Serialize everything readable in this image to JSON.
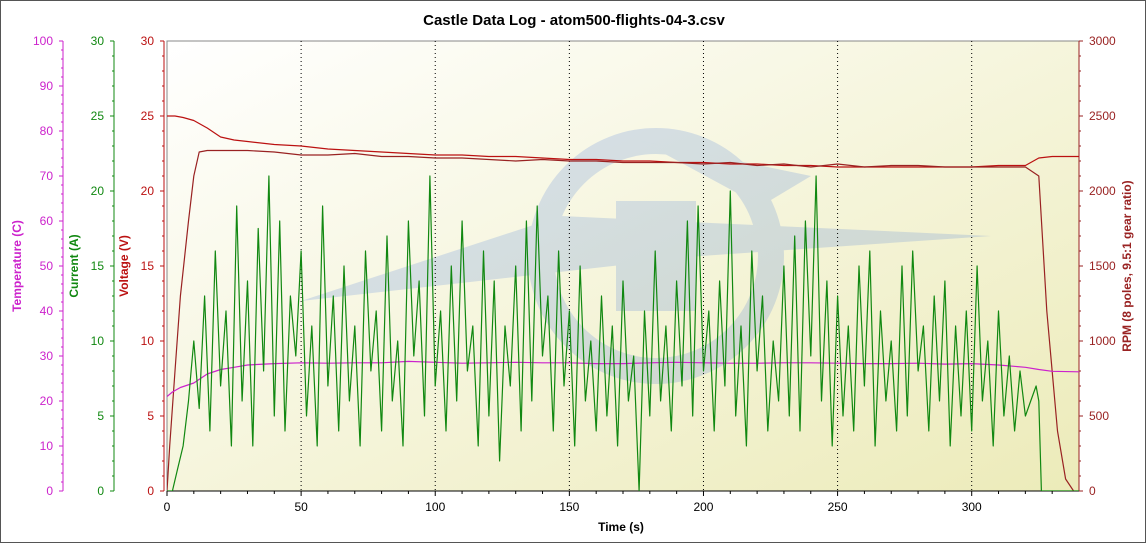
{
  "chart_data": {
    "type": "line",
    "title": "Castle Data Log - atom500-flights-04-3.csv",
    "xlabel": "Time (s)",
    "xlim": [
      0,
      340
    ],
    "x_ticks": [
      "0",
      "50",
      "100",
      "150",
      "200",
      "250",
      "300"
    ],
    "axes": [
      {
        "name": "temperature",
        "label": "Temperature (C)",
        "color": "#cc22cc",
        "lim": [
          0,
          100
        ],
        "ticks": [
          "0",
          "10",
          "20",
          "30",
          "40",
          "50",
          "60",
          "70",
          "80",
          "90",
          "100"
        ]
      },
      {
        "name": "current",
        "label": "Current (A)",
        "color": "#118811",
        "lim": [
          0,
          30
        ],
        "ticks": [
          "0",
          "5",
          "10",
          "15",
          "20",
          "25",
          "30"
        ]
      },
      {
        "name": "voltage",
        "label": "Voltage (V)",
        "color": "#bb1111",
        "lim": [
          0,
          30
        ],
        "ticks": [
          "0",
          "5",
          "10",
          "15",
          "20",
          "25",
          "30"
        ]
      },
      {
        "name": "rpm",
        "label": "RPM (8 poles, 9.5:1 gear ratio)",
        "color": "#992222",
        "lim": [
          0,
          3000
        ],
        "ticks": [
          "0",
          "500",
          "1000",
          "1500",
          "2000",
          "2500",
          "3000"
        ]
      }
    ],
    "series": [
      {
        "axis": "voltage",
        "color": "#bb1111",
        "x": [
          0,
          0.5,
          3,
          6,
          10,
          15,
          20,
          25,
          30,
          40,
          50,
          60,
          70,
          80,
          90,
          100,
          110,
          120,
          130,
          140,
          150,
          160,
          170,
          180,
          190,
          200,
          210,
          220,
          230,
          240,
          250,
          260,
          270,
          280,
          290,
          300,
          310,
          320,
          325,
          330,
          335,
          340
        ],
        "values": [
          25.0,
          25.0,
          25.0,
          24.9,
          24.7,
          24.2,
          23.6,
          23.4,
          23.3,
          23.1,
          23.0,
          22.8,
          22.7,
          22.6,
          22.5,
          22.4,
          22.4,
          22.3,
          22.3,
          22.2,
          22.1,
          22.1,
          22.0,
          22.0,
          21.9,
          21.9,
          21.8,
          21.8,
          21.7,
          21.7,
          21.6,
          21.6,
          21.6,
          21.6,
          21.6,
          21.6,
          21.7,
          21.7,
          22.2,
          22.3,
          22.3,
          22.3
        ]
      },
      {
        "axis": "rpm",
        "color": "#992222",
        "x": [
          0,
          1,
          3,
          5,
          8,
          10,
          12,
          15,
          20,
          30,
          40,
          50,
          60,
          70,
          80,
          90,
          100,
          110,
          120,
          130,
          140,
          150,
          160,
          170,
          180,
          190,
          200,
          210,
          220,
          230,
          240,
          250,
          260,
          270,
          280,
          290,
          300,
          310,
          320,
          325,
          328,
          332,
          335,
          338
        ],
        "values": [
          0,
          300,
          800,
          1300,
          1800,
          2100,
          2260,
          2270,
          2270,
          2270,
          2260,
          2240,
          2240,
          2250,
          2230,
          2230,
          2220,
          2220,
          2210,
          2200,
          2210,
          2200,
          2200,
          2190,
          2190,
          2190,
          2180,
          2190,
          2170,
          2180,
          2160,
          2180,
          2160,
          2170,
          2170,
          2160,
          2160,
          2160,
          2160,
          2100,
          1200,
          400,
          80,
          0
        ]
      },
      {
        "axis": "temperature",
        "color": "#cc22cc",
        "x": [
          0,
          2,
          5,
          10,
          15,
          20,
          25,
          30,
          40,
          50,
          60,
          70,
          80,
          90,
          100,
          110,
          120,
          130,
          140,
          150,
          160,
          170,
          180,
          190,
          200,
          210,
          220,
          230,
          240,
          250,
          260,
          270,
          280,
          290,
          300,
          310,
          320,
          325,
          330,
          340
        ],
        "values": [
          21,
          22,
          23,
          24,
          26,
          27,
          27.5,
          28,
          28.3,
          28.5,
          28.4,
          28.5,
          28.5,
          28.8,
          28.6,
          28.4,
          28.5,
          28.6,
          28.5,
          28.5,
          28.3,
          28.3,
          28.5,
          28.6,
          28.5,
          28.4,
          28.4,
          28.5,
          28.5,
          28.4,
          28.3,
          28.3,
          28.4,
          28.2,
          28.3,
          28.0,
          27.5,
          27.0,
          26.6,
          26.5
        ]
      },
      {
        "axis": "current",
        "color": "#118811",
        "x": [
          0,
          2,
          4,
          6,
          8,
          9,
          10,
          12,
          14,
          16,
          18,
          20,
          22,
          24,
          26,
          28,
          30,
          32,
          34,
          36,
          38,
          40,
          42,
          44,
          46,
          48,
          50,
          52,
          54,
          56,
          58,
          60,
          62,
          64,
          66,
          68,
          70,
          72,
          74,
          76,
          78,
          80,
          82,
          84,
          86,
          88,
          90,
          92,
          94,
          96,
          98,
          100,
          102,
          104,
          106,
          108,
          110,
          112,
          114,
          116,
          118,
          120,
          122,
          124,
          126,
          128,
          130,
          132,
          134,
          136,
          138,
          140,
          142,
          144,
          146,
          148,
          150,
          152,
          154,
          156,
          158,
          160,
          162,
          164,
          166,
          168,
          170,
          172,
          174,
          176,
          178,
          180,
          182,
          184,
          186,
          188,
          190,
          192,
          194,
          196,
          198,
          200,
          202,
          204,
          206,
          208,
          210,
          212,
          214,
          216,
          218,
          220,
          222,
          224,
          226,
          228,
          230,
          232,
          234,
          236,
          238,
          240,
          242,
          244,
          246,
          248,
          250,
          252,
          254,
          256,
          258,
          260,
          262,
          264,
          266,
          268,
          270,
          272,
          274,
          276,
          278,
          280,
          282,
          284,
          286,
          288,
          290,
          292,
          294,
          296,
          298,
          300,
          302,
          304,
          306,
          308,
          310,
          312,
          314,
          316,
          318,
          320,
          322,
          324,
          325,
          326,
          330,
          335,
          340
        ],
        "values": [
          0,
          0,
          1.5,
          3,
          6,
          8,
          10,
          5.5,
          13,
          4,
          16,
          7,
          12,
          3,
          19,
          6,
          14,
          3,
          17.5,
          8,
          21,
          5,
          18,
          4,
          13,
          9,
          16,
          5,
          11,
          3,
          19,
          7,
          13,
          4,
          15,
          6,
          11,
          3,
          16,
          8,
          12,
          4,
          17,
          6,
          10,
          3,
          18,
          9,
          14,
          5,
          21,
          7,
          12,
          4,
          15,
          6,
          18,
          8,
          11,
          3,
          16,
          5,
          14,
          2,
          11,
          7,
          15,
          4,
          18,
          6,
          19,
          9,
          13,
          4,
          16,
          7,
          12,
          3,
          15,
          6,
          10,
          4,
          13,
          5,
          11,
          3,
          14,
          6,
          9,
          0,
          12,
          5,
          16,
          6,
          11,
          4,
          14,
          7,
          18,
          5,
          19,
          8,
          12,
          4,
          14,
          7,
          20,
          5,
          11,
          3,
          16,
          8,
          13,
          4,
          10,
          6,
          15,
          5,
          17,
          4,
          18,
          9,
          21,
          6,
          14,
          3,
          13,
          5,
          11,
          4,
          15,
          7,
          16,
          3,
          12,
          6,
          10,
          4,
          15,
          5,
          16,
          8,
          11,
          4,
          13,
          6,
          14,
          3,
          11,
          5,
          12,
          4,
          15,
          6,
          10,
          3,
          12,
          5,
          9,
          4,
          8,
          5,
          6,
          7,
          6,
          0,
          0,
          0,
          0
        ]
      }
    ]
  }
}
